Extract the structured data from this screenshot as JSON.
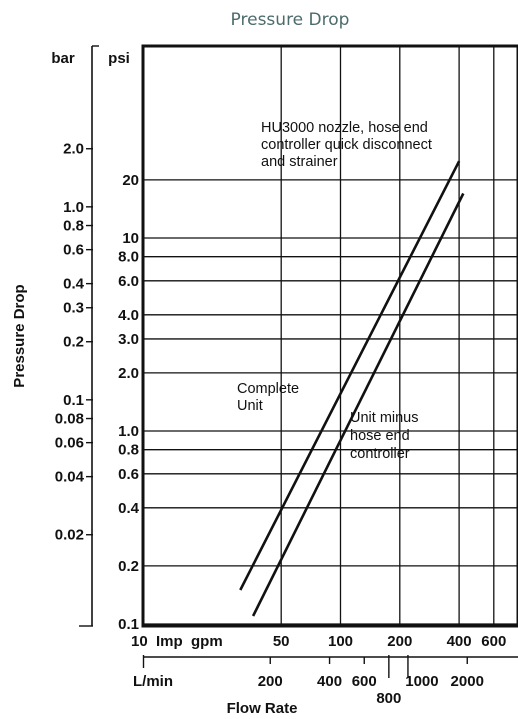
{
  "title": "Pressure Drop",
  "chart_data": {
    "type": "line",
    "title": "Pressure Drop",
    "xlabel": "Flow Rate",
    "ylabel": "Pressure Drop",
    "x_scale": "log",
    "y_scale": "log",
    "xlim_imp_gpm": [
      10,
      800
    ],
    "ylim_psi": [
      0.1,
      50
    ],
    "grid": true,
    "psi_axis_label": "psi",
    "bar_axis_label": "bar",
    "imp_gpm_axis_label": "10  Imp  gpm",
    "lmin_axis_label": "L/min",
    "psi_ticks": [
      "0.1",
      "0.2",
      "0.4",
      "0.6",
      "0.8",
      "1.0",
      "2.0",
      "3.0",
      "4.0",
      "6.0",
      "8.0",
      "10",
      "20"
    ],
    "bar_ticks": [
      "0.02",
      "0.04",
      "0.06",
      "0.08",
      "0.1",
      "0.2",
      "0.3",
      "0.4",
      "0.6",
      "0.8",
      "1.0",
      "2.0"
    ],
    "imp_gpm_ticks": [
      "50",
      "100",
      "200",
      "400",
      "600"
    ],
    "lmin_ticks": [
      "200",
      "400",
      "600",
      "800",
      "1000",
      "2000"
    ],
    "series": [
      {
        "name": "HU3000 nozzle, hose end controller quick disconnect and strainer",
        "x": [
          31,
          400
        ],
        "y": [
          0.15,
          25
        ]
      },
      {
        "name": "Unit minus hose end controller",
        "x": [
          36,
          420
        ],
        "y": [
          0.11,
          17
        ]
      }
    ],
    "annotations": [
      {
        "lines": [
          "HU3000 nozzle, hose end",
          "controller quick disconnect",
          "and strainer"
        ]
      },
      {
        "lines": [
          "Complete",
          "Unit"
        ]
      },
      {
        "lines": [
          "Unit minus",
          "hose end",
          "controller"
        ]
      }
    ]
  }
}
